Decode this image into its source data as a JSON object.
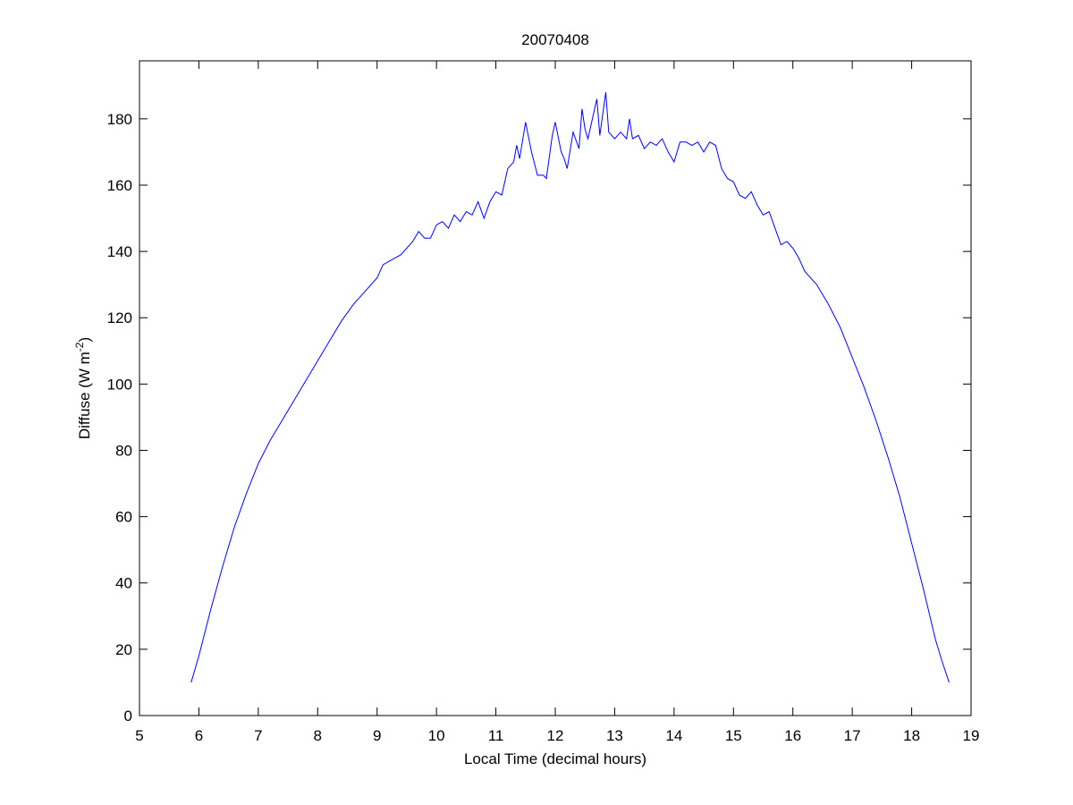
{
  "chart_data": {
    "type": "line",
    "title": "20070408",
    "xlabel": "Local Time (decimal hours)",
    "ylabel": {
      "text": "Diffuse (W m",
      "superscript": "-2",
      "end": ")"
    },
    "xlim": [
      5,
      19
    ],
    "xticks": [
      5,
      6,
      7,
      8,
      9,
      10,
      11,
      12,
      13,
      14,
      15,
      16,
      17,
      18,
      19
    ],
    "ylim": [
      0,
      197.5
    ],
    "yticks": [
      0,
      20,
      40,
      60,
      80,
      100,
      120,
      140,
      160,
      180
    ],
    "grid": false,
    "series": [
      {
        "name": "Diffuse",
        "color": "#0000ff",
        "x": [
          5.87,
          6.0,
          6.2,
          6.4,
          6.6,
          6.8,
          7.0,
          7.2,
          7.4,
          7.6,
          7.8,
          8.0,
          8.2,
          8.4,
          8.6,
          8.8,
          9.0,
          9.1,
          9.2,
          9.4,
          9.6,
          9.7,
          9.8,
          9.9,
          10.0,
          10.1,
          10.2,
          10.3,
          10.4,
          10.5,
          10.6,
          10.7,
          10.8,
          10.9,
          11.0,
          11.1,
          11.2,
          11.3,
          11.35,
          11.4,
          11.5,
          11.6,
          11.7,
          11.8,
          11.85,
          11.95,
          12.0,
          12.1,
          12.15,
          12.2,
          12.3,
          12.4,
          12.45,
          12.5,
          12.55,
          12.6,
          12.7,
          12.75,
          12.85,
          12.9,
          13.0,
          13.1,
          13.2,
          13.25,
          13.3,
          13.4,
          13.5,
          13.6,
          13.7,
          13.8,
          13.9,
          14.0,
          14.1,
          14.2,
          14.3,
          14.4,
          14.5,
          14.6,
          14.7,
          14.8,
          14.9,
          15.0,
          15.1,
          15.2,
          15.3,
          15.4,
          15.5,
          15.6,
          15.7,
          15.8,
          15.9,
          16.0,
          16.1,
          16.2,
          16.4,
          16.6,
          16.8,
          17.0,
          17.2,
          17.4,
          17.6,
          17.8,
          18.0,
          18.2,
          18.4,
          18.5,
          18.63
        ],
        "values": [
          10,
          18,
          32,
          45,
          57,
          67,
          76,
          83,
          89,
          95,
          101,
          107,
          113,
          119,
          124,
          128,
          132,
          136,
          137,
          139,
          143,
          146,
          144,
          144,
          148,
          149,
          147,
          151,
          149,
          152,
          151,
          155,
          150,
          155,
          158,
          157,
          165,
          167,
          172,
          168,
          179,
          170,
          163,
          163,
          162,
          175,
          179,
          170,
          168,
          165,
          176,
          171,
          183,
          177,
          174,
          178,
          186,
          175,
          188,
          176,
          174,
          176,
          174,
          180,
          174,
          175,
          171,
          173,
          172,
          174,
          170,
          167,
          173,
          173,
          172,
          173,
          170,
          173,
          172,
          165,
          162,
          161,
          157,
          156,
          158,
          154,
          151,
          152,
          147,
          142,
          143,
          141,
          138,
          134,
          130,
          124,
          117,
          108,
          99,
          89,
          78,
          66,
          52,
          38,
          23,
          17,
          10
        ]
      }
    ]
  }
}
